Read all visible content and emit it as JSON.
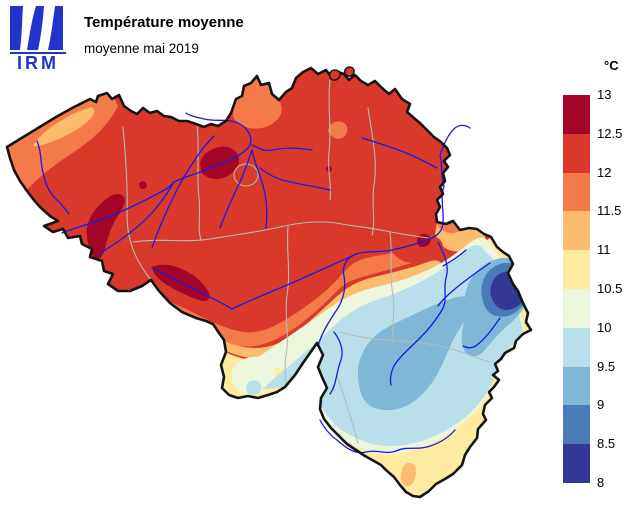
{
  "header": {
    "title": "Température moyenne",
    "subtitle": "moyenne mai 2019",
    "logo_text": "IRM",
    "logo_color": "#2233cc"
  },
  "legend": {
    "unit_label": "°C",
    "ticks": [
      "13",
      "12.5",
      "12",
      "11.5",
      "11",
      "10.5",
      "10",
      "9.5",
      "9",
      "8.5",
      "8"
    ],
    "band_colors": [
      "#a30529",
      "#d8392a",
      "#f57a4a",
      "#fbbc6e",
      "#feeb9f",
      "#ebf6dc",
      "#b8dfea",
      "#80b6d6",
      "#4b7ab9",
      "#333795"
    ]
  },
  "map": {
    "outline_color": "#141414",
    "river_color": "#1a1ae0",
    "boundary_color": "#b9b9b9",
    "background": "#ffffff"
  }
}
